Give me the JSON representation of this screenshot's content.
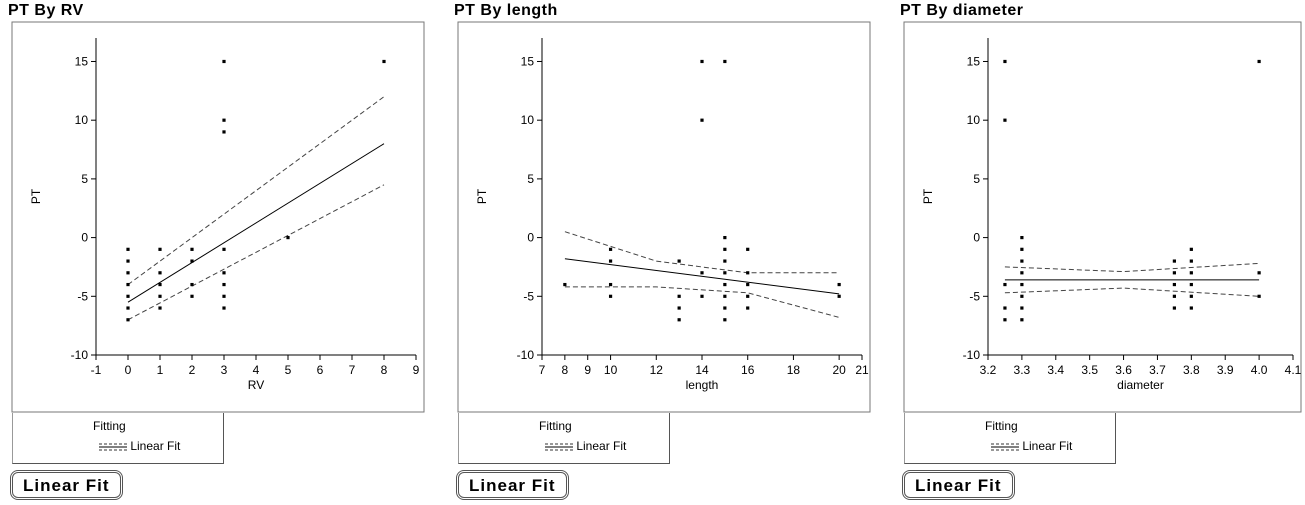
{
  "panels": [
    {
      "title": "PT  By  RV",
      "fitting_label": "Fitting",
      "legend_label": "Linear Fit",
      "button_label": "Linear  Fit"
    },
    {
      "title": "PT  By  length",
      "fitting_label": "Fitting",
      "legend_label": "Linear Fit",
      "button_label": "Linear  Fit"
    },
    {
      "title": "PT  By  diameter",
      "fitting_label": "Fitting",
      "legend_label": "Linear Fit",
      "button_label": "Linear  Fit"
    }
  ],
  "chart_data": [
    {
      "type": "scatter",
      "title": "PT  By  RV",
      "xlabel": "RV",
      "ylabel": "PT",
      "xlim": [
        -1,
        9
      ],
      "ylim": [
        -10,
        17
      ],
      "xticks": [
        -1,
        0,
        1,
        2,
        3,
        4,
        5,
        6,
        7,
        8,
        9
      ],
      "xtick_labels": [
        "-1",
        "0",
        "1",
        "2",
        "3",
        "4",
        "5",
        "6",
        "7",
        "8",
        "9"
      ],
      "yticks": [
        -10,
        -5,
        0,
        5,
        10,
        15
      ],
      "ytick_labels": [
        "-10",
        "-5",
        "0",
        "5",
        "10",
        "15"
      ],
      "points": [
        [
          0,
          -1
        ],
        [
          0,
          -2
        ],
        [
          0,
          -3
        ],
        [
          0,
          -4
        ],
        [
          0,
          -5
        ],
        [
          0,
          -6
        ],
        [
          0,
          -7
        ],
        [
          1,
          -1
        ],
        [
          1,
          -3
        ],
        [
          1,
          -4
        ],
        [
          1,
          -5
        ],
        [
          1,
          -6
        ],
        [
          2,
          -1
        ],
        [
          2,
          -2
        ],
        [
          2,
          -4
        ],
        [
          2,
          -5
        ],
        [
          3,
          15
        ],
        [
          3,
          10
        ],
        [
          3,
          9
        ],
        [
          3,
          -1
        ],
        [
          3,
          -3
        ],
        [
          3,
          -4
        ],
        [
          3,
          -5
        ],
        [
          3,
          -6
        ],
        [
          5,
          0
        ],
        [
          8,
          15
        ]
      ],
      "fit": [
        [
          0,
          -5.5
        ],
        [
          8,
          8
        ]
      ],
      "ci_upper": [
        [
          0,
          -4
        ],
        [
          8,
          12
        ]
      ],
      "ci_lower": [
        [
          0,
          -7
        ],
        [
          8,
          4.5
        ]
      ],
      "legend": [
        "Linear Fit"
      ],
      "grid": false
    },
    {
      "type": "scatter",
      "title": "PT  By  length",
      "xlabel": "length",
      "ylabel": "PT",
      "xlim": [
        7,
        21
      ],
      "ylim": [
        -10,
        17
      ],
      "xticks": [
        7,
        8,
        9,
        10,
        12,
        14,
        16,
        18,
        20,
        21
      ],
      "xtick_labels": [
        "7",
        "8",
        "9",
        "10",
        "12",
        "14",
        "16",
        "18",
        "20",
        "21"
      ],
      "yticks": [
        -10,
        -5,
        0,
        5,
        10,
        15
      ],
      "ytick_labels": [
        "-10",
        "-5",
        "0",
        "5",
        "10",
        "15"
      ],
      "points": [
        [
          8,
          -4
        ],
        [
          10,
          -1
        ],
        [
          10,
          -2
        ],
        [
          10,
          -4
        ],
        [
          10,
          -5
        ],
        [
          13,
          -2
        ],
        [
          13,
          -5
        ],
        [
          13,
          -6
        ],
        [
          13,
          -7
        ],
        [
          14,
          15
        ],
        [
          14,
          10
        ],
        [
          14,
          -3
        ],
        [
          14,
          -5
        ],
        [
          15,
          15
        ],
        [
          15,
          0
        ],
        [
          15,
          -1
        ],
        [
          15,
          -2
        ],
        [
          15,
          -3
        ],
        [
          15,
          -4
        ],
        [
          15,
          -5
        ],
        [
          15,
          -6
        ],
        [
          15,
          -7
        ],
        [
          16,
          -1
        ],
        [
          16,
          -3
        ],
        [
          16,
          -4
        ],
        [
          16,
          -5
        ],
        [
          16,
          -6
        ],
        [
          20,
          -4
        ],
        [
          20,
          -5
        ]
      ],
      "fit": [
        [
          8,
          -1.8
        ],
        [
          20,
          -4.8
        ]
      ],
      "ci_upper": [
        [
          8,
          0.5
        ],
        [
          12,
          -2
        ],
        [
          16,
          -3
        ],
        [
          20,
          -3
        ]
      ],
      "ci_lower": [
        [
          8,
          -4.2
        ],
        [
          12,
          -4.2
        ],
        [
          16,
          -4.7
        ],
        [
          20,
          -6.8
        ]
      ],
      "legend": [
        "Linear Fit"
      ],
      "grid": false
    },
    {
      "type": "scatter",
      "title": "PT  By  diameter",
      "xlabel": "diameter",
      "ylabel": "PT",
      "xlim": [
        3.2,
        4.1
      ],
      "ylim": [
        -10,
        17
      ],
      "xticks": [
        3.2,
        3.3,
        3.4,
        3.5,
        3.6,
        3.7,
        3.8,
        3.9,
        4.0,
        4.1
      ],
      "xtick_labels": [
        "3.2",
        "3.3",
        "3.4",
        "3.5",
        "3.6",
        "3.7",
        "3.8",
        "3.9",
        "4.0",
        "4.1"
      ],
      "yticks": [
        -10,
        -5,
        0,
        5,
        10,
        15
      ],
      "ytick_labels": [
        "-10",
        "-5",
        "0",
        "5",
        "10",
        "15"
      ],
      "points": [
        [
          3.25,
          15
        ],
        [
          3.25,
          10
        ],
        [
          3.25,
          -4
        ],
        [
          3.25,
          -6
        ],
        [
          3.25,
          -7
        ],
        [
          3.3,
          0
        ],
        [
          3.3,
          -1
        ],
        [
          3.3,
          -2
        ],
        [
          3.3,
          -3
        ],
        [
          3.3,
          -4
        ],
        [
          3.3,
          -5
        ],
        [
          3.3,
          -6
        ],
        [
          3.3,
          -7
        ],
        [
          3.75,
          -2
        ],
        [
          3.75,
          -3
        ],
        [
          3.75,
          -4
        ],
        [
          3.75,
          -5
        ],
        [
          3.75,
          -6
        ],
        [
          3.8,
          -1
        ],
        [
          3.8,
          -2
        ],
        [
          3.8,
          -3
        ],
        [
          3.8,
          -4
        ],
        [
          3.8,
          -5
        ],
        [
          3.8,
          -6
        ],
        [
          4.0,
          15
        ],
        [
          4.0,
          -3
        ],
        [
          4.0,
          -5
        ]
      ],
      "fit": [
        [
          3.25,
          -3.6
        ],
        [
          4.0,
          -3.6
        ]
      ],
      "ci_upper": [
        [
          3.25,
          -2.5
        ],
        [
          3.6,
          -2.9
        ],
        [
          4.0,
          -2.2
        ]
      ],
      "ci_lower": [
        [
          3.25,
          -4.7
        ],
        [
          3.6,
          -4.3
        ],
        [
          4.0,
          -5.0
        ]
      ],
      "legend": [
        "Linear Fit"
      ],
      "grid": false
    }
  ]
}
